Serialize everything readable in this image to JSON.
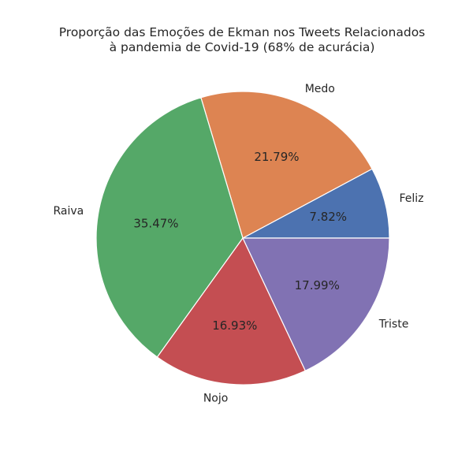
{
  "chart_data": {
    "type": "pie",
    "title": "Proporção das Emoções de Ekman nos Tweets Relacionados\nà pandemia de Covid-19 (68% de acurácia)",
    "slices": [
      {
        "label": "Feliz",
        "value": 7.82,
        "pct_label": "7.82%",
        "color": "#4c72b0"
      },
      {
        "label": "Medo",
        "value": 21.79,
        "pct_label": "21.79%",
        "color": "#dd8452"
      },
      {
        "label": "Raiva",
        "value": 35.47,
        "pct_label": "35.47%",
        "color": "#55a868"
      },
      {
        "label": "Nojo",
        "value": 16.93,
        "pct_label": "16.93%",
        "color": "#c44e52"
      },
      {
        "label": "Triste",
        "value": 17.99,
        "pct_label": "17.99%",
        "color": "#8172b3"
      }
    ],
    "start_angle_deg": 0,
    "direction": "counterclockwise"
  }
}
